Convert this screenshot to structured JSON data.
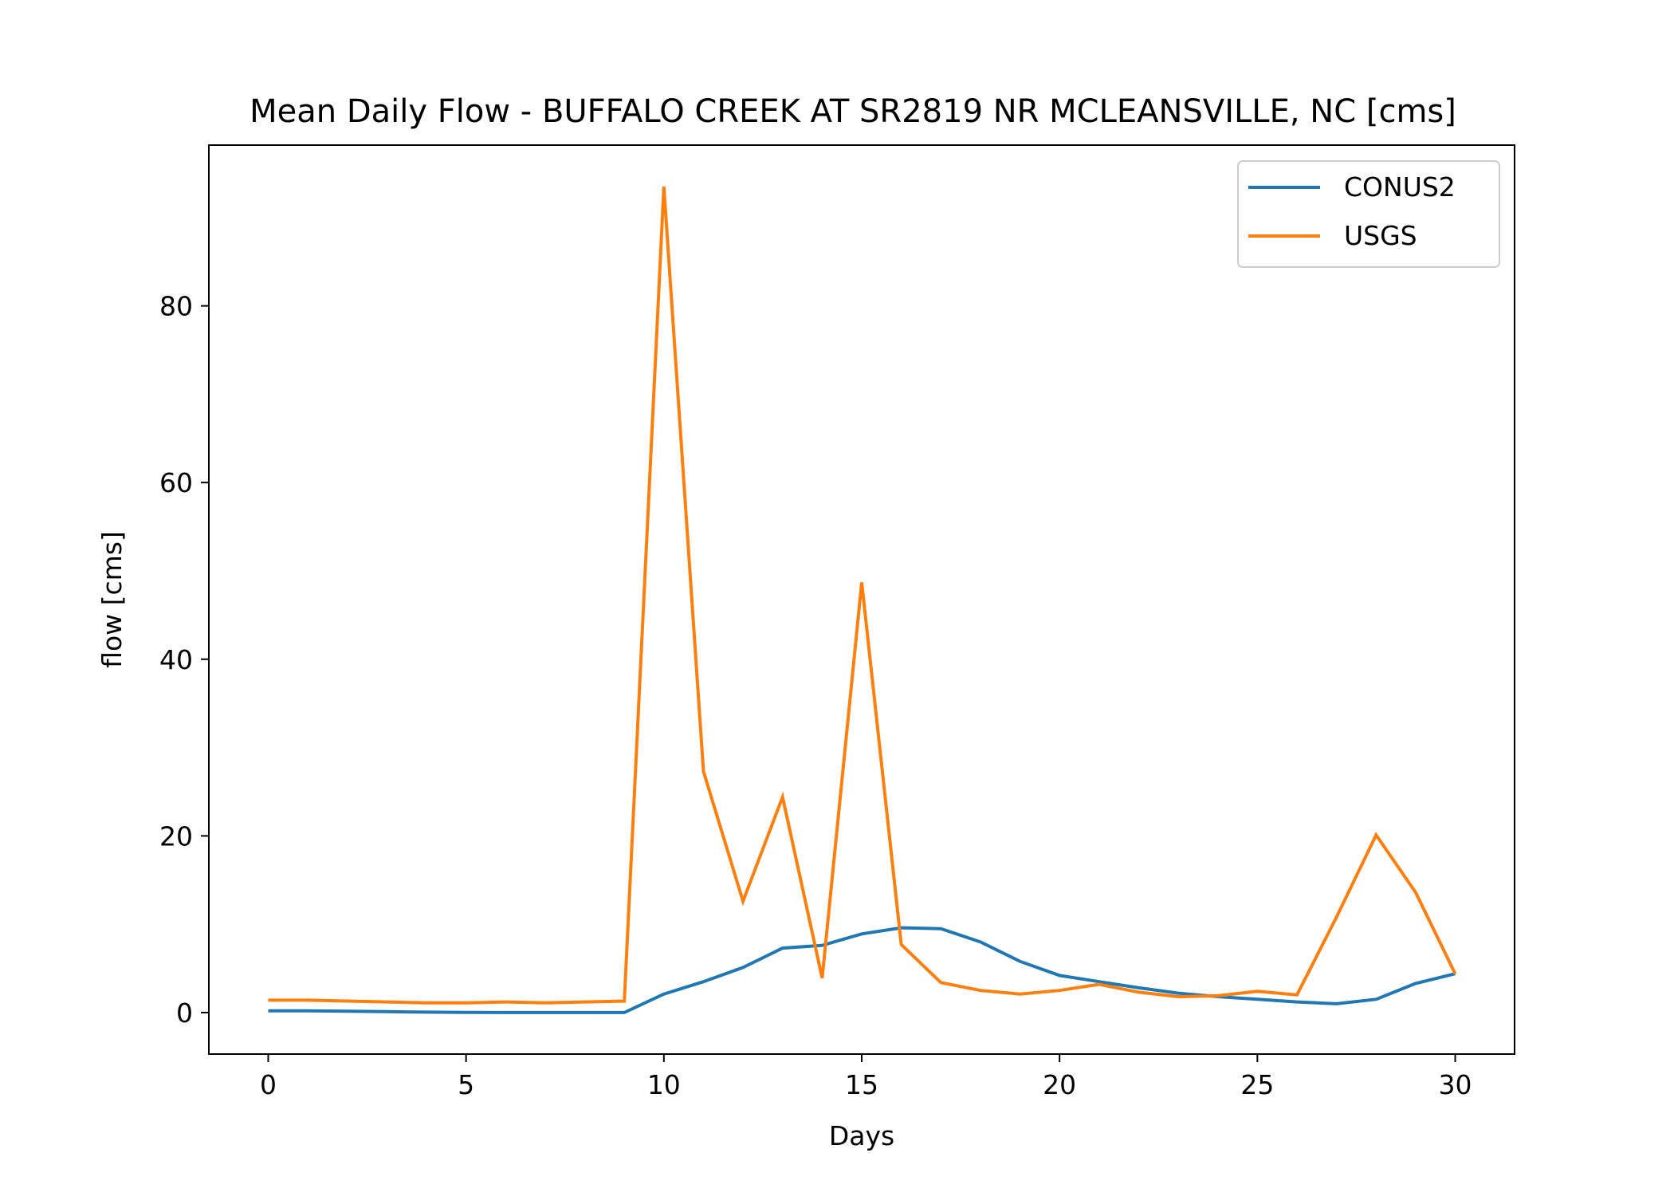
{
  "chart_data": {
    "type": "line",
    "title": "Mean Daily Flow - BUFFALO CREEK AT SR2819 NR MCLEANSVILLE, NC [cms]",
    "xlabel": "Days",
    "ylabel": "flow [cms]",
    "xlim": [
      -1.5,
      31.5
    ],
    "ylim": [
      -4.7,
      98.2
    ],
    "xticks": [
      0,
      5,
      10,
      15,
      20,
      25,
      30
    ],
    "yticks": [
      0,
      20,
      40,
      60,
      80
    ],
    "grid": false,
    "legend_position": "top-right",
    "x": [
      0,
      1,
      2,
      3,
      4,
      5,
      6,
      7,
      8,
      9,
      10,
      11,
      12,
      13,
      14,
      15,
      16,
      17,
      18,
      19,
      20,
      21,
      22,
      23,
      24,
      25,
      26,
      27,
      28,
      29,
      30
    ],
    "series": [
      {
        "name": "CONUS2",
        "color": "#1f77b4",
        "values": [
          0.2,
          0.2,
          0.15,
          0.1,
          0.05,
          0.02,
          0.0,
          0.0,
          0.0,
          0.0,
          2.1,
          3.5,
          5.1,
          7.3,
          7.6,
          8.9,
          9.6,
          9.5,
          8.0,
          5.8,
          4.2,
          3.5,
          2.8,
          2.2,
          1.8,
          1.5,
          1.2,
          1.0,
          1.5,
          3.3,
          4.4
        ]
      },
      {
        "name": "USGS",
        "color": "#ff7f0e",
        "values": [
          1.4,
          1.4,
          1.3,
          1.2,
          1.1,
          1.1,
          1.2,
          1.1,
          1.2,
          1.3,
          93.5,
          27.3,
          12.6,
          24.4,
          3.9,
          48.7,
          7.7,
          3.4,
          2.5,
          2.1,
          2.5,
          3.2,
          2.3,
          1.8,
          1.9,
          2.4,
          2.0,
          10.8,
          20.1,
          13.6,
          4.4
        ]
      }
    ]
  }
}
